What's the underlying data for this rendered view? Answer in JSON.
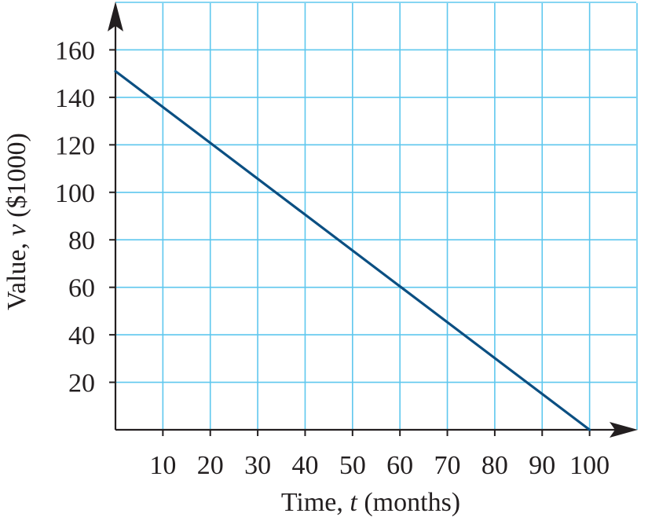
{
  "chart_data": {
    "type": "line",
    "xlabel": {
      "prefix": "Time, ",
      "var": "t",
      "suffix": " (months)"
    },
    "ylabel": {
      "prefix": "Value, ",
      "var": "v",
      "suffix": " ($1000)"
    },
    "x_ticks": [
      10,
      20,
      30,
      40,
      50,
      60,
      70,
      80,
      90,
      100
    ],
    "y_ticks": [
      20,
      40,
      60,
      80,
      100,
      120,
      140,
      160
    ],
    "xlim": [
      0,
      110
    ],
    "ylim": [
      0,
      180
    ],
    "grid": true,
    "series": [
      {
        "x": [
          0,
          100
        ],
        "y": [
          151,
          0
        ],
        "color": "#0b4f82"
      }
    ],
    "colors": {
      "grid": "#5ec7ee",
      "axis": "#231f20",
      "line": "#0b4f82"
    }
  }
}
